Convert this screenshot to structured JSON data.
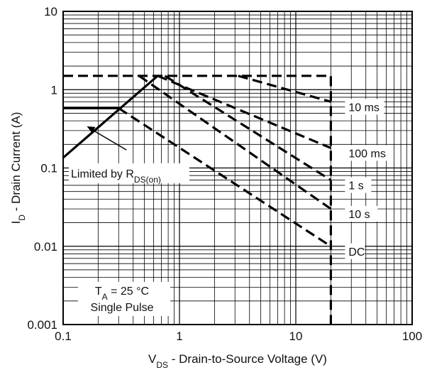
{
  "chart_data": {
    "type": "line",
    "x_scale": "log",
    "y_scale": "log",
    "xlim": [
      0.1,
      100
    ],
    "ylim": [
      0.001,
      10
    ],
    "grid": true,
    "x_ticks": [
      "0.1",
      "1",
      "10",
      "100"
    ],
    "y_ticks": [
      "0.001",
      "0.01",
      "0.1",
      "1",
      "10"
    ],
    "xlabel": {
      "main": "V",
      "sub": "DS",
      "rest": " - Drain-to-Source Voltage (V)"
    },
    "ylabel": {
      "main": "I",
      "sub": "D",
      "rest": " - Drain Current (A)"
    },
    "series": [
      {
        "name": "Limited by R_DS(on)",
        "style": "solid",
        "points": [
          [
            0.1,
            0.135
          ],
          [
            0.65,
            1.5
          ]
        ]
      },
      {
        "name": "Limited by R_DS(on)",
        "style": "solid",
        "points": [
          [
            0.1,
            0.58
          ],
          [
            0.3,
            0.58
          ]
        ]
      },
      {
        "name": "10 ms",
        "style": "dashed",
        "points": [
          [
            0.1,
            1.5
          ],
          [
            20,
            1.5
          ],
          [
            20,
            0.001
          ]
        ]
      },
      {
        "name": "10 ms",
        "style": "dashed",
        "points": [
          [
            3.2,
            1.5
          ],
          [
            20,
            0.7
          ]
        ]
      },
      {
        "name": "100 ms",
        "style": "dashed",
        "points": [
          [
            0.65,
            1.5
          ],
          [
            20,
            0.18
          ]
        ]
      },
      {
        "name": "1 s",
        "style": "dashed",
        "points": [
          [
            0.75,
            1.5
          ],
          [
            20,
            0.07
          ]
        ]
      },
      {
        "name": "10 s",
        "style": "dashed",
        "points": [
          [
            0.45,
            1.5
          ],
          [
            20,
            0.03
          ]
        ]
      },
      {
        "name": "DC",
        "style": "dashed",
        "points": [
          [
            0.3,
            0.58
          ],
          [
            20,
            0.01
          ]
        ]
      }
    ],
    "curve_labels": [
      {
        "text": "10 ms",
        "x": 20,
        "y": 0.7
      },
      {
        "text": "100 ms",
        "x": 20,
        "y": 0.18
      },
      {
        "text": "1 s",
        "x": 20,
        "y": 0.07
      },
      {
        "text": "10 s",
        "x": 20,
        "y": 0.03
      },
      {
        "text": "DC",
        "x": 20,
        "y": 0.01
      }
    ],
    "annotations": {
      "rds_label": {
        "main": "Limited by R",
        "sub": "DS(on)"
      },
      "ta_label": {
        "main": "T",
        "sub": "A",
        "rest": " = 25 °C"
      },
      "pulse_label": "Single Pulse"
    }
  }
}
